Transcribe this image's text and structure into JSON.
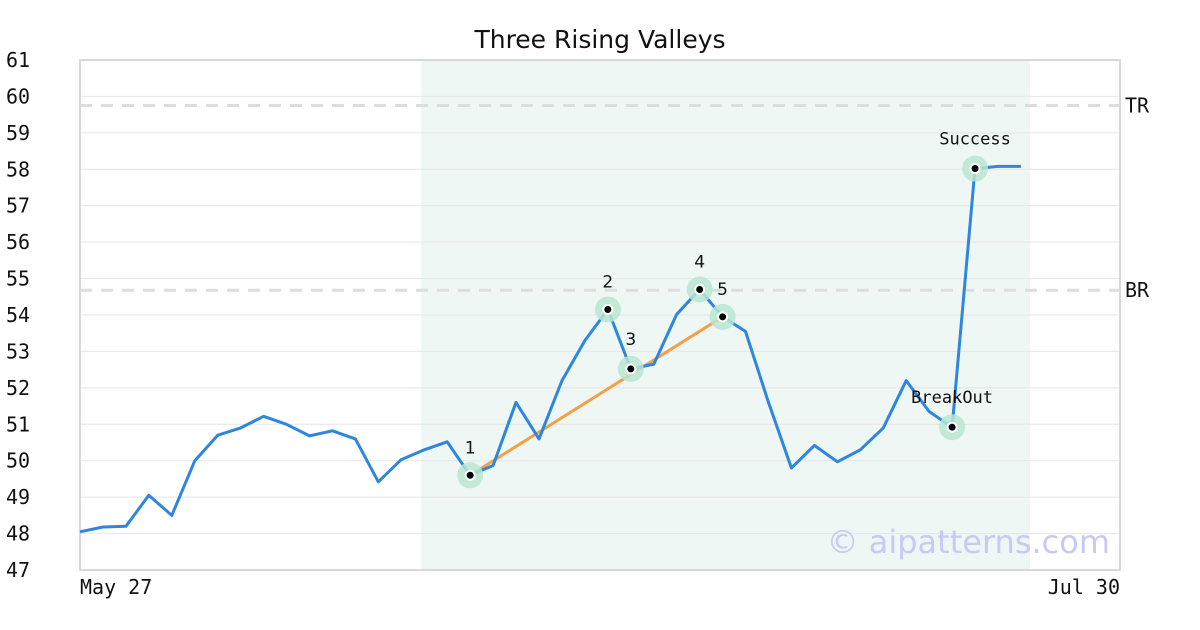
{
  "chart_data": {
    "type": "line",
    "title": "Three Rising Valleys",
    "x_start_label": "May 27",
    "x_end_label": "Jul 30",
    "ylim": [
      47,
      61
    ],
    "yticks": [
      47,
      48,
      49,
      50,
      51,
      52,
      53,
      54,
      55,
      56,
      57,
      58,
      59,
      60,
      61
    ],
    "grid": true,
    "series": [
      {
        "values": [
          48.05,
          48.18,
          48.2,
          49.05,
          48.5,
          50.0,
          50.7,
          50.9,
          51.22,
          51.0,
          50.68,
          50.82,
          50.6,
          49.42,
          50.03,
          50.3,
          50.52,
          49.6,
          49.87,
          51.6,
          50.6,
          52.2,
          53.3,
          54.15,
          52.52,
          52.65,
          54.02,
          54.7,
          53.95,
          53.55,
          51.6,
          49.8,
          50.42,
          49.97,
          50.3,
          50.9,
          52.2,
          51.35,
          50.92,
          58.02,
          58.08,
          58.08
        ]
      }
    ],
    "highlight_range": [
      15,
      41
    ],
    "horizontal_lines": [
      {
        "label": "TR",
        "value": 59.75
      },
      {
        "label": "BR",
        "value": 54.68
      }
    ],
    "trend_line": [
      17,
      28
    ],
    "points": [
      {
        "label": "1",
        "index": 17,
        "value": 49.6
      },
      {
        "label": "2",
        "index": 23,
        "value": 54.15
      },
      {
        "label": "3",
        "index": 24,
        "value": 52.52
      },
      {
        "label": "4",
        "index": 27,
        "value": 54.7
      },
      {
        "label": "5",
        "index": 28,
        "value": 53.95
      },
      {
        "label": "BreakOut",
        "index": 38,
        "value": 50.92
      },
      {
        "label": "Success",
        "index": 39,
        "value": 58.02
      }
    ],
    "colors": {
      "line": "#2e86de",
      "trend": "#f4a04a",
      "highlight": "#eef7f3",
      "marker_halo": "#b8e6d2",
      "hline": "#dddddd",
      "grid": "#e6e6e6"
    },
    "watermark": "© aipatterns.com"
  }
}
